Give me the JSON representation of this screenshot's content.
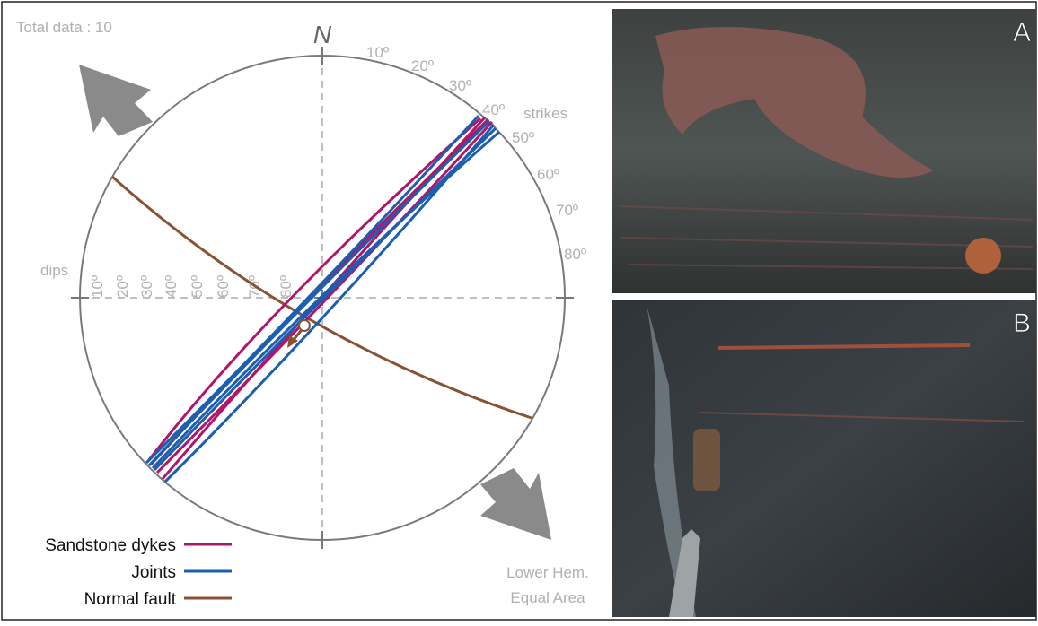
{
  "header": {
    "total": "Total data : 10"
  },
  "stereonet": {
    "north": "N",
    "strikes_label": "strikes",
    "strike_ticks": [
      "10º",
      "20º",
      "30º",
      "40º",
      "50º",
      "60º",
      "70º",
      "80º"
    ],
    "dips_label": "dips",
    "dip_ticks": [
      "10º",
      "20º",
      "30º",
      "40º",
      "50º",
      "60º",
      "70º",
      "80º"
    ],
    "projection": [
      "Lower Hem.",
      "Equal Area"
    ]
  },
  "legend": [
    "Sandstone dykes",
    "Joints",
    "Normal fault"
  ],
  "photos": [
    "A",
    "B"
  ]
}
